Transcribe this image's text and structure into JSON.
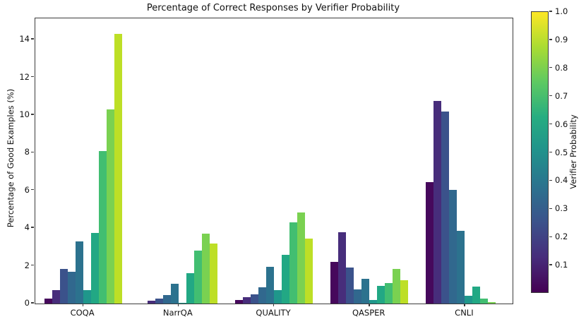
{
  "chart_data": {
    "type": "bar",
    "title": "Percentage of Correct Responses by Verifier Probability",
    "xlabel": "",
    "ylabel": "Percentage of Good Examples (%)",
    "categories": [
      "COQA",
      "NarrQA",
      "QUALITY",
      "QASPER",
      "CNLI"
    ],
    "yticks": [
      0,
      2,
      4,
      6,
      8,
      10,
      12,
      14
    ],
    "ylim": [
      0,
      15.13
    ],
    "grid": false,
    "legend_position": "colorbar-right",
    "series": [
      {
        "name": "0.05",
        "color": "#46085c",
        "values": [
          0.25,
          0.0,
          0.2,
          2.2,
          6.45
        ]
      },
      {
        "name": "0.15",
        "color": "#472d7b",
        "values": [
          0.7,
          0.15,
          0.35,
          3.8,
          10.75
        ]
      },
      {
        "name": "0.25",
        "color": "#3b528b",
        "values": [
          1.85,
          0.25,
          0.5,
          1.9,
          10.2
        ]
      },
      {
        "name": "0.35",
        "color": "#31688e",
        "values": [
          1.7,
          0.45,
          0.85,
          0.75,
          6.05
        ]
      },
      {
        "name": "0.45",
        "color": "#2c728e",
        "values": [
          3.3,
          1.05,
          1.95,
          1.3,
          3.85
        ]
      },
      {
        "name": "0.55",
        "color": "#1f978b",
        "values": [
          0.7,
          0.05,
          0.7,
          0.2,
          0.4
        ]
      },
      {
        "name": "0.65",
        "color": "#22a884",
        "values": [
          3.75,
          1.6,
          2.6,
          0.95,
          0.9
        ]
      },
      {
        "name": "0.75",
        "color": "#42be71",
        "values": [
          8.1,
          2.8,
          4.3,
          1.1,
          0.25
        ]
      },
      {
        "name": "0.85",
        "color": "#7ad151",
        "values": [
          10.3,
          3.7,
          4.85,
          1.85,
          0.07
        ]
      },
      {
        "name": "0.95",
        "color": "#bddf26",
        "values": [
          14.3,
          3.2,
          3.45,
          1.25,
          0.0
        ]
      }
    ]
  },
  "colorbar": {
    "label": "Verifier Probability",
    "ticks": [
      0.1,
      0.2,
      0.3,
      0.4,
      0.5,
      0.6,
      0.7,
      0.8,
      0.9,
      1.0
    ],
    "range": [
      0.0,
      1.0
    ],
    "colormap": "viridis"
  },
  "colors": {
    "background": "#ffffff",
    "axis": "#3c3c3c",
    "text": "#111111"
  }
}
